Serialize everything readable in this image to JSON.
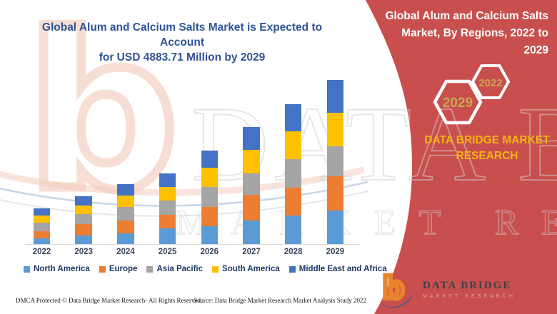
{
  "header": {
    "line1": "Global Alum and Calcium Salts Market is Expected to Account",
    "line2": "for USD 4883.71 Million by 2029"
  },
  "panel": {
    "title": "Global Alum and Calcium Salts Market, By Regions, 2022 to 2029",
    "background_color": "#C84F4D",
    "hexagons": [
      {
        "label": "2029",
        "border_color": "#FFFFFF",
        "text_color": "#C9A554"
      },
      {
        "label": "2022",
        "border_color": "#FFFFFF",
        "text_color": "#C9A554"
      }
    ],
    "brand_line1": "DATA BRIDGE MARKET",
    "brand_line2": "RESEARCH",
    "brand_text_color": "#F2B410"
  },
  "chart_data": {
    "type": "bar",
    "stacked": true,
    "title": "Global Alum and Calcium Salts Market is Expected to Account for USD 4883.71 Million by 2029",
    "categories": [
      "2022",
      "2023",
      "2024",
      "2025",
      "2026",
      "2027",
      "2028",
      "2029"
    ],
    "series": [
      {
        "name": "North America",
        "color": "#5B9BD5",
        "values": [
          170,
          265,
          330,
          475,
          540,
          695,
          850,
          1000
        ]
      },
      {
        "name": "Europe",
        "color": "#ED7D31",
        "values": [
          215,
          340,
          370,
          390,
          570,
          765,
          825,
          1025
        ]
      },
      {
        "name": "Asia Pacific",
        "color": "#A5A5A5",
        "values": [
          255,
          285,
          410,
          425,
          590,
          640,
          850,
          885
        ]
      },
      {
        "name": "South America",
        "color": "#FFC000",
        "values": [
          215,
          250,
          335,
          410,
          575,
          710,
          825,
          995
        ]
      },
      {
        "name": "Middle East and Africa",
        "color": "#4472C4",
        "values": [
          210,
          285,
          335,
          405,
          515,
          685,
          820,
          978.71
        ]
      }
    ],
    "totals": [
      1065,
      1425,
      1780,
      2105,
      2790,
      3495,
      4170,
      4883.71
    ],
    "unit": "USD Million (segment values estimated from bar heights; 2029 total anchored to USD 4883.71 Million stated in title)",
    "ylim": [
      0,
      4900
    ],
    "y_axis_shown": false,
    "grid": false,
    "legend_position": "bottom"
  },
  "watermark": {
    "logo_letter": "b",
    "line1": "DATA BRIDGE",
    "line2": "MARKET RESEARCH"
  },
  "footer": {
    "left": "DMCA Protected © Data Bridge Market Research- All Rights Reserved.",
    "source": "Source: Data Bridge Market Research Market Analysis Study 2022"
  },
  "logo": {
    "name": "DATA BRIDGE",
    "subtitle": "MARKET RESEARCH"
  }
}
